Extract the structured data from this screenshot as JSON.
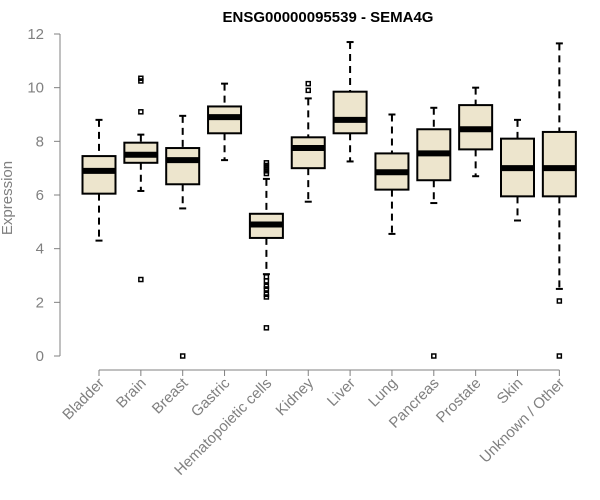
{
  "chart_data": {
    "type": "boxplot",
    "title": "ENSG00000095539 - SEMA4G",
    "xlabel": "",
    "ylabel": "Expression",
    "ylim": [
      0,
      12
    ],
    "yticks": [
      0,
      2,
      4,
      6,
      8,
      10,
      12
    ],
    "box_color": "#ede5cd",
    "categories": [
      "Bladder",
      "Brain",
      "Breast",
      "Gastric",
      "Hematopoietic cells",
      "Kidney",
      "Liver",
      "Lung",
      "Pancreas",
      "Prostate",
      "Skin",
      "Unknown / Other"
    ],
    "boxes": [
      {
        "name": "Bladder",
        "min": 4.3,
        "q1": 6.05,
        "median": 6.9,
        "q3": 7.45,
        "max": 8.8,
        "outliers": []
      },
      {
        "name": "Brain",
        "min": 6.15,
        "q1": 7.2,
        "median": 7.5,
        "q3": 7.95,
        "max": 8.25,
        "outliers": [
          10.35,
          10.25,
          9.1,
          2.85
        ]
      },
      {
        "name": "Breast",
        "min": 5.5,
        "q1": 6.4,
        "median": 7.3,
        "q3": 7.75,
        "max": 8.95,
        "outliers": [
          0.0
        ]
      },
      {
        "name": "Gastric",
        "min": 7.3,
        "q1": 8.3,
        "median": 8.9,
        "q3": 9.3,
        "max": 10.15,
        "outliers": []
      },
      {
        "name": "Hematopoietic cells",
        "min": 3.05,
        "q1": 4.4,
        "median": 4.9,
        "q3": 5.3,
        "max": 6.6,
        "outliers": [
          7.2,
          7.1,
          7.0,
          6.9,
          6.8,
          2.95,
          2.8,
          2.6,
          2.5,
          2.3,
          2.2,
          1.05
        ]
      },
      {
        "name": "Kidney",
        "min": 5.75,
        "q1": 7.0,
        "median": 7.75,
        "q3": 8.15,
        "max": 9.6,
        "outliers": [
          10.15,
          9.9
        ]
      },
      {
        "name": "Liver",
        "min": 7.25,
        "q1": 8.3,
        "median": 8.8,
        "q3": 9.85,
        "max": 11.7,
        "outliers": []
      },
      {
        "name": "Lung",
        "min": 4.55,
        "q1": 6.2,
        "median": 6.85,
        "q3": 7.55,
        "max": 9.0,
        "outliers": []
      },
      {
        "name": "Pancreas",
        "min": 5.7,
        "q1": 6.55,
        "median": 7.55,
        "q3": 8.45,
        "max": 9.25,
        "outliers": [
          0.0
        ]
      },
      {
        "name": "Prostate",
        "min": 6.7,
        "q1": 7.7,
        "median": 8.45,
        "q3": 9.35,
        "max": 10.0,
        "outliers": []
      },
      {
        "name": "Skin",
        "min": 5.05,
        "q1": 5.95,
        "median": 7.0,
        "q3": 8.1,
        "max": 8.8,
        "outliers": []
      },
      {
        "name": "Unknown / Other",
        "min": 2.5,
        "q1": 5.95,
        "median": 7.0,
        "q3": 8.35,
        "max": 11.65,
        "outliers": [
          2.05,
          0.0
        ]
      }
    ]
  }
}
